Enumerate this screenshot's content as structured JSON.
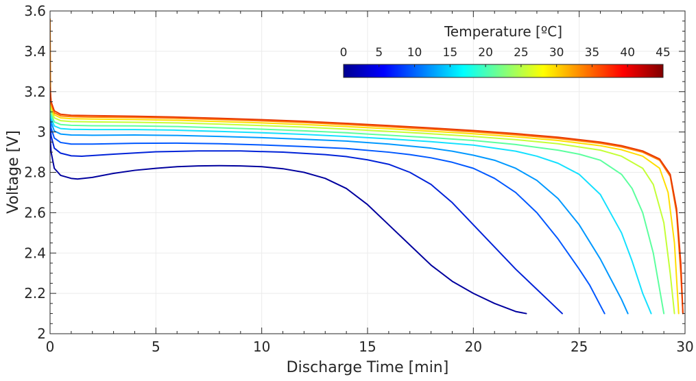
{
  "chart_data": {
    "type": "line",
    "xlabel": "Discharge Time [min]",
    "ylabel": "Voltage [V]",
    "xlim": [
      0,
      30
    ],
    "ylim": [
      2,
      3.6
    ],
    "x_ticks": [
      "0",
      "5",
      "10",
      "15",
      "20",
      "25",
      "30"
    ],
    "y_ticks": [
      "2",
      "2.2",
      "2.4",
      "2.6",
      "2.8",
      "3",
      "3.2",
      "3.4",
      "3.6"
    ],
    "grid": true,
    "colormap": "jet",
    "colorbar": {
      "title": "Temperature [ºC]",
      "range": [
        0,
        45
      ],
      "ticks": [
        "0",
        "5",
        "10",
        "15",
        "20",
        "25",
        "30",
        "35",
        "40",
        "45"
      ],
      "placement": "top-right"
    },
    "series": [
      {
        "temperature": 0,
        "color": "#00009e",
        "x": [
          0,
          0.05,
          0.2,
          0.5,
          1,
          1.3,
          2,
          3,
          4,
          5,
          6,
          7,
          8,
          9,
          10,
          11,
          12,
          13,
          14,
          15,
          16,
          17,
          18,
          19,
          20,
          21,
          21.5,
          22,
          22.5
        ],
        "y": [
          2.98,
          2.9,
          2.82,
          2.785,
          2.77,
          2.767,
          2.775,
          2.795,
          2.81,
          2.82,
          2.828,
          2.832,
          2.833,
          2.832,
          2.828,
          2.818,
          2.8,
          2.77,
          2.72,
          2.64,
          2.54,
          2.44,
          2.34,
          2.26,
          2.2,
          2.15,
          2.13,
          2.11,
          2.1
        ]
      },
      {
        "temperature": 5,
        "color": "#0022d8",
        "x": [
          0,
          0.05,
          0.2,
          0.5,
          1,
          1.5,
          3,
          5,
          7,
          9,
          11,
          13,
          14,
          15,
          16,
          17,
          18,
          19,
          20,
          21,
          22,
          23,
          23.5,
          24,
          24.2
        ],
        "y": [
          3.04,
          2.98,
          2.92,
          2.895,
          2.882,
          2.88,
          2.89,
          2.902,
          2.906,
          2.906,
          2.9,
          2.888,
          2.878,
          2.862,
          2.84,
          2.8,
          2.74,
          2.65,
          2.54,
          2.43,
          2.32,
          2.22,
          2.17,
          2.12,
          2.1
        ]
      },
      {
        "temperature": 10,
        "color": "#0058ff",
        "x": [
          0,
          0.05,
          0.2,
          0.5,
          1,
          2,
          4,
          6,
          8,
          10,
          12,
          14,
          16,
          17,
          18,
          19,
          20,
          21,
          22,
          23,
          24,
          25,
          25.5,
          26,
          26.2
        ],
        "y": [
          3.08,
          3.02,
          2.97,
          2.948,
          2.94,
          2.94,
          2.944,
          2.945,
          2.942,
          2.936,
          2.928,
          2.918,
          2.9,
          2.888,
          2.872,
          2.85,
          2.82,
          2.77,
          2.7,
          2.6,
          2.47,
          2.32,
          2.24,
          2.14,
          2.1
        ]
      },
      {
        "temperature": 15,
        "color": "#0098ff",
        "x": [
          0,
          0.05,
          0.2,
          0.5,
          1,
          2,
          4,
          6,
          8,
          10,
          12,
          14,
          16,
          18,
          19,
          20,
          21,
          22,
          23,
          24,
          25,
          26,
          26.5,
          27,
          27.3
        ],
        "y": [
          3.11,
          3.05,
          3.005,
          2.99,
          2.985,
          2.984,
          2.985,
          2.983,
          2.978,
          2.972,
          2.964,
          2.955,
          2.94,
          2.92,
          2.905,
          2.885,
          2.86,
          2.82,
          2.76,
          2.67,
          2.54,
          2.37,
          2.27,
          2.17,
          2.1
        ]
      },
      {
        "temperature": 20,
        "color": "#14e0ff",
        "x": [
          0,
          0.05,
          0.2,
          0.5,
          1,
          2,
          4,
          6,
          8,
          10,
          12,
          14,
          16,
          18,
          20,
          22,
          23,
          24,
          25,
          26,
          27,
          27.5,
          28,
          28.4
        ],
        "y": [
          3.13,
          3.07,
          3.03,
          3.017,
          3.013,
          3.012,
          3.012,
          3.009,
          3.003,
          2.996,
          2.988,
          2.978,
          2.966,
          2.952,
          2.935,
          2.905,
          2.88,
          2.845,
          2.79,
          2.69,
          2.5,
          2.36,
          2.2,
          2.1
        ]
      },
      {
        "temperature": 25,
        "color": "#5cff9e",
        "x": [
          0,
          0.05,
          0.2,
          0.5,
          1,
          2,
          4,
          6,
          8,
          10,
          12,
          14,
          16,
          18,
          20,
          22,
          24,
          25,
          26,
          27,
          27.5,
          28,
          28.5,
          28.8,
          29
        ],
        "y": [
          3.15,
          3.09,
          3.05,
          3.037,
          3.033,
          3.031,
          3.03,
          3.027,
          3.021,
          3.014,
          3.006,
          2.996,
          2.984,
          2.972,
          2.958,
          2.938,
          2.91,
          2.89,
          2.86,
          2.79,
          2.72,
          2.6,
          2.4,
          2.22,
          2.1
        ]
      },
      {
        "temperature": 30,
        "color": "#c4ff36",
        "x": [
          0,
          0.05,
          0.2,
          0.5,
          1,
          2,
          4,
          6,
          8,
          10,
          12,
          14,
          16,
          18,
          20,
          22,
          24,
          26,
          27,
          28,
          28.5,
          29,
          29.3,
          29.5
        ],
        "y": [
          3.17,
          3.11,
          3.07,
          3.056,
          3.052,
          3.05,
          3.048,
          3.045,
          3.039,
          3.032,
          3.024,
          3.014,
          3.003,
          2.991,
          2.978,
          2.962,
          2.942,
          2.91,
          2.88,
          2.82,
          2.74,
          2.55,
          2.3,
          2.1
        ]
      },
      {
        "temperature": 35,
        "color": "#ffde00",
        "x": [
          0,
          0.05,
          0.2,
          0.5,
          1,
          2,
          4,
          6,
          8,
          10,
          12,
          14,
          16,
          18,
          20,
          22,
          24,
          26,
          27,
          28,
          28.8,
          29.2,
          29.5,
          29.7
        ],
        "y": [
          3.2,
          3.13,
          3.085,
          3.07,
          3.066,
          3.064,
          3.062,
          3.058,
          3.052,
          3.045,
          3.037,
          3.027,
          3.016,
          3.004,
          2.991,
          2.976,
          2.958,
          2.932,
          2.912,
          2.88,
          2.82,
          2.7,
          2.45,
          2.1
        ]
      },
      {
        "temperature": 40,
        "color": "#ff7c00",
        "x": [
          0,
          0.02,
          0.05,
          0.2,
          0.5,
          1,
          2,
          4,
          6,
          8,
          10,
          12,
          14,
          16,
          18,
          20,
          22,
          24,
          26,
          27,
          28,
          28.8,
          29.3,
          29.6,
          29.8,
          29.9
        ],
        "y": [
          3.56,
          3.2,
          3.14,
          3.095,
          3.08,
          3.076,
          3.074,
          3.072,
          3.068,
          3.062,
          3.055,
          3.047,
          3.037,
          3.026,
          3.014,
          3.001,
          2.986,
          2.968,
          2.944,
          2.926,
          2.9,
          2.86,
          2.78,
          2.6,
          2.3,
          2.1
        ]
      },
      {
        "temperature": 45,
        "color": "#e83a00",
        "x": [
          0,
          0.05,
          0.2,
          0.5,
          1,
          2,
          4,
          6,
          8,
          10,
          12,
          14,
          16,
          18,
          20,
          22,
          24,
          26,
          27,
          28,
          28.8,
          29.3,
          29.6,
          29.8,
          29.9
        ],
        "y": [
          3.22,
          3.15,
          3.105,
          3.088,
          3.083,
          3.081,
          3.078,
          3.074,
          3.068,
          3.061,
          3.053,
          3.043,
          3.032,
          3.02,
          3.007,
          2.992,
          2.974,
          2.95,
          2.932,
          2.906,
          2.866,
          2.79,
          2.62,
          2.35,
          2.1
        ]
      }
    ]
  }
}
